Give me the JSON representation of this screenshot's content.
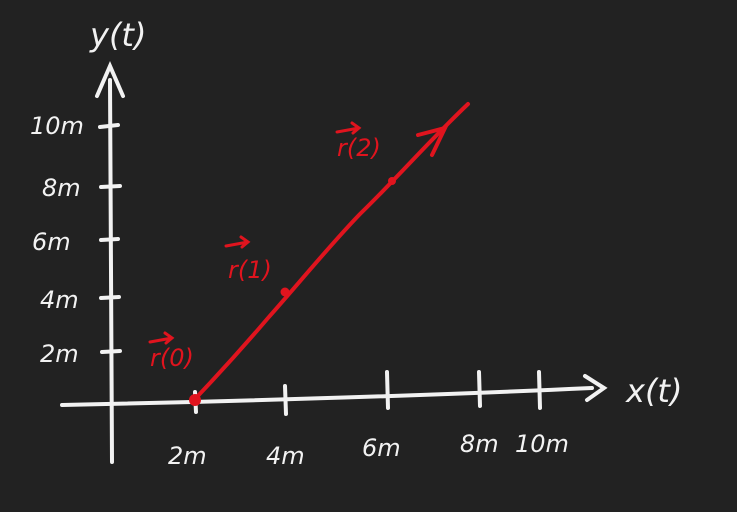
{
  "colors": {
    "background": "#222222",
    "ink": "#f2f2f2",
    "trajectory": "#e0141e"
  },
  "axes": {
    "y_label": "y(t)",
    "x_label": "x(t)",
    "y_ticks": [
      "10m",
      "8m",
      "6m",
      "4m",
      "2m"
    ],
    "x_ticks": [
      "2m",
      "4m",
      "6m",
      "8m",
      "10m"
    ]
  },
  "trajectory": {
    "points": [
      {
        "label": "r(0)"
      },
      {
        "label": "r(1)"
      },
      {
        "label": "r(2)"
      }
    ]
  }
}
